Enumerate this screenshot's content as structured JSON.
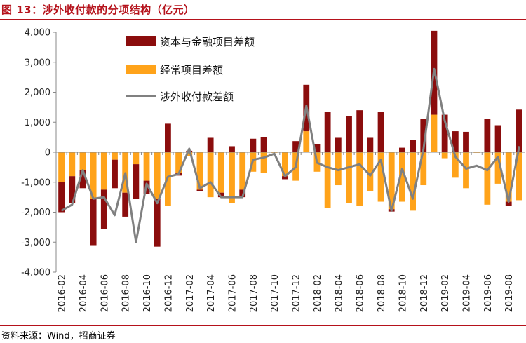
{
  "title": "图 13：涉外收付款的分项结构（亿元）",
  "source": "资料来源：Wind，招商证券",
  "colors": {
    "capital": "#8b0d0d",
    "current": "#ffa31a",
    "total": "#808080",
    "accent": "#b5121b"
  },
  "chart_data": {
    "type": "bar",
    "stacked": true,
    "xlabel": "",
    "ylabel": "",
    "ylim": [
      -4000,
      4000
    ],
    "yticks": [
      4000,
      3000,
      2000,
      1000,
      0,
      -1000,
      -2000,
      -3000,
      -4000
    ],
    "ytick_labels": [
      "4,000",
      "3,000",
      "2,000",
      "1,000",
      "0",
      "-1,000",
      "-2,000",
      "-3,000",
      "-4,000"
    ],
    "legend_position": "top-center",
    "categories": [
      "2016-02",
      "2016-03",
      "2016-04",
      "2016-05",
      "2016-06",
      "2016-07",
      "2016-08",
      "2016-09",
      "2016-10",
      "2016-11",
      "2016-12",
      "2017-01",
      "2017-02",
      "2017-03",
      "2017-04",
      "2017-05",
      "2017-06",
      "2017-07",
      "2017-08",
      "2017-09",
      "2017-10",
      "2017-11",
      "2017-12",
      "2018-01",
      "2018-02",
      "2018-03",
      "2018-04",
      "2018-05",
      "2018-06",
      "2018-07",
      "2018-08",
      "2018-09",
      "2018-10",
      "2018-11",
      "2018-12",
      "2019-01",
      "2019-02",
      "2019-03",
      "2019-04",
      "2019-05",
      "2019-06",
      "2019-07",
      "2019-08",
      "2019-09"
    ],
    "xtick_labels": [
      "2016-02",
      "2016-04",
      "2016-06",
      "2016-08",
      "2016-10",
      "2016-12",
      "2017-02",
      "2017-04",
      "2017-06",
      "2017-08",
      "2017-10",
      "2017-12",
      "2018-02",
      "2018-04",
      "2018-06",
      "2018-08",
      "2018-10",
      "2018-12",
      "2019-02",
      "2019-04",
      "2019-06",
      "2019-08"
    ],
    "series": [
      {
        "name": "资本与金融项目差额",
        "kind": "bar",
        "values": [
          -1000,
          -900,
          -600,
          -1550,
          -1300,
          -950,
          -800,
          -1150,
          -450,
          -1600,
          950,
          -80,
          50,
          -50,
          480,
          -150,
          200,
          -250,
          450,
          500,
          0,
          -100,
          370,
          1550,
          280,
          1350,
          480,
          1200,
          1400,
          480,
          1350,
          -80,
          150,
          400,
          1100,
          2800,
          1250,
          700,
          680,
          0,
          1100,
          900,
          -150,
          1420
        ]
      },
      {
        "name": "经常项目差额",
        "kind": "bar",
        "values": [
          -1000,
          -800,
          -600,
          -1550,
          -1250,
          -250,
          -1350,
          -400,
          -950,
          -1550,
          -1800,
          -700,
          -130,
          -1250,
          -1500,
          -1350,
          -1700,
          -1250,
          -650,
          -700,
          -20,
          -800,
          -950,
          700,
          -650,
          -1850,
          -1100,
          -1700,
          -1800,
          -1300,
          -1650,
          -1900,
          -1650,
          -1950,
          -1100,
          1250,
          -200,
          -850,
          -1200,
          -20,
          -1750,
          -1050,
          -1650,
          -1600
        ]
      },
      {
        "name": "涉外收付款差额",
        "kind": "line",
        "values": [
          -1950,
          -1750,
          -600,
          -1550,
          -1500,
          -2100,
          -700,
          -3000,
          -1050,
          -1700,
          -820,
          -730,
          120,
          -1200,
          -1000,
          -1500,
          -1500,
          -1500,
          -250,
          -180,
          -50,
          -800,
          -500,
          1550,
          -350,
          -500,
          -600,
          -500,
          -400,
          -780,
          -250,
          -1950,
          -550,
          -1550,
          100,
          2780,
          1050,
          -150,
          -550,
          -450,
          -600,
          -150,
          -1650,
          200
        ]
      }
    ]
  }
}
